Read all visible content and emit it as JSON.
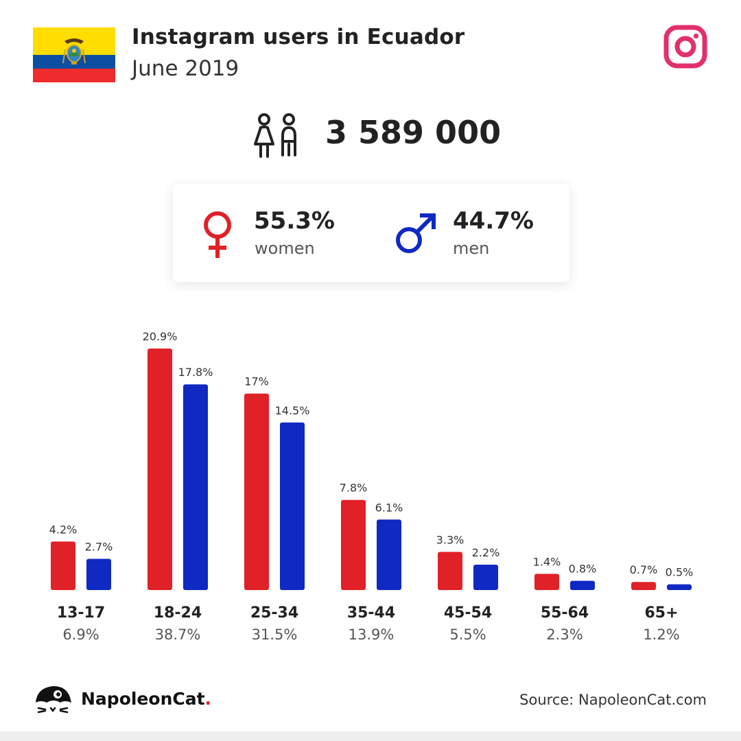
{
  "header": {
    "title": "Instagram users in Ecuador",
    "subtitle": "June 2019"
  },
  "total": {
    "value": "3 589 000",
    "icon": "people-icon"
  },
  "gender": {
    "women": {
      "pct": "55.3%",
      "label": "women",
      "icon": "female-symbol-icon",
      "color": "#e02127"
    },
    "men": {
      "pct": "44.7%",
      "label": "men",
      "icon": "male-symbol-icon",
      "color": "#1029c2"
    }
  },
  "footer": {
    "brand": "NapoleonCat",
    "brand_dot": ".",
    "source": "Source: NapoleonCat.com"
  },
  "colors": {
    "women": "#e02127",
    "men": "#1029c2",
    "instagram": "#e1306c",
    "flag_yellow": "#ffdd00",
    "flag_blue": "#0b4ea2",
    "flag_red": "#ef2b2d"
  },
  "chart_data": {
    "type": "bar",
    "categories": [
      "13-17",
      "18-24",
      "25-34",
      "35-44",
      "45-54",
      "55-64",
      "65+"
    ],
    "category_totals": [
      "6.9%",
      "38.7%",
      "31.5%",
      "13.9%",
      "5.5%",
      "2.3%",
      "1.2%"
    ],
    "series": [
      {
        "values": [
          4.2,
          20.9,
          17,
          7.8,
          3.3,
          1.4,
          0.7
        ],
        "labels": [
          "4.2%",
          "20.9%",
          "17%",
          "7.8%",
          "3.3%",
          "1.4%",
          "0.7%"
        ]
      },
      {
        "values": [
          2.7,
          17.8,
          14.5,
          6.1,
          2.2,
          0.8,
          0.5
        ],
        "labels": [
          "2.7%",
          "17.8%",
          "14.5%",
          "6.1%",
          "2.2%",
          "0.8%",
          "0.5%"
        ]
      }
    ],
    "ylim": [
      0,
      20.9
    ],
    "grid": false
  }
}
